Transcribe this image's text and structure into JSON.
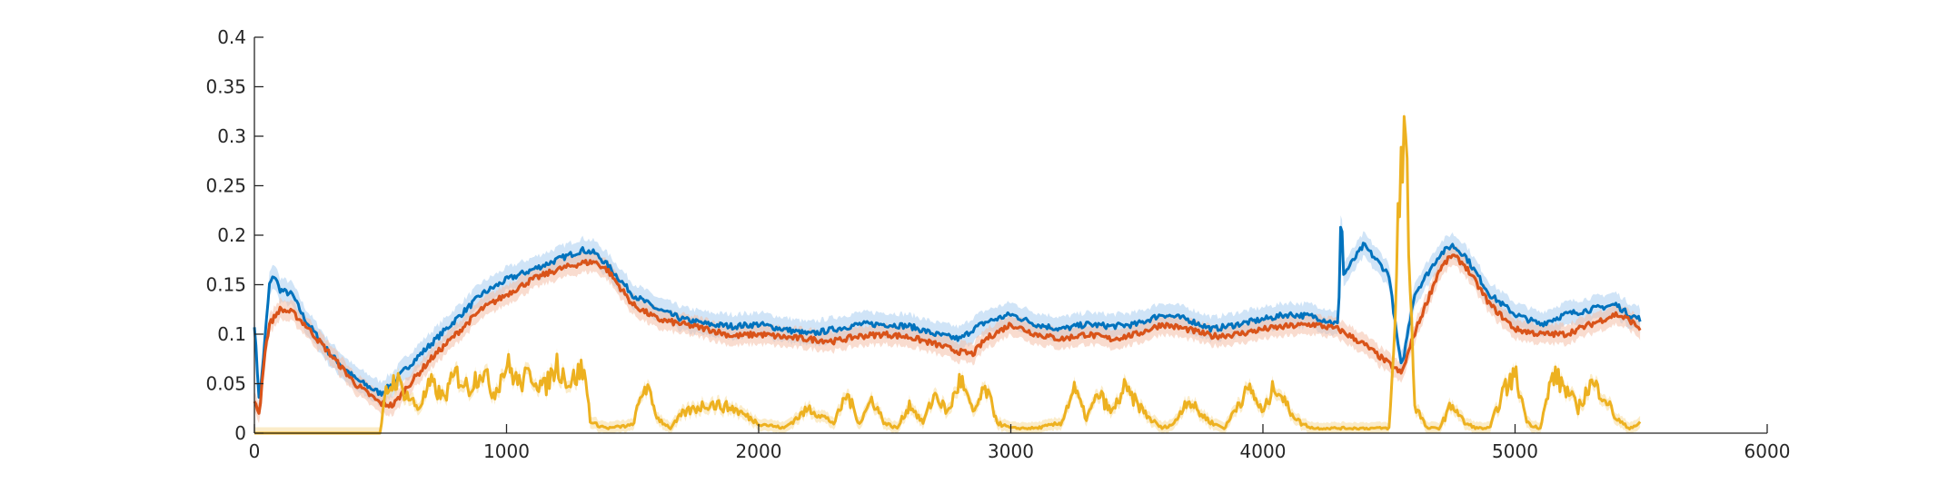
{
  "chart_data": {
    "type": "line",
    "title": "",
    "xlabel": "",
    "ylabel": "",
    "xlim": [
      0,
      6000
    ],
    "ylim": [
      0,
      0.4
    ],
    "xticks": [
      0,
      1000,
      2000,
      3000,
      4000,
      5000,
      6000
    ],
    "xtick_labels": [
      "0",
      "1000",
      "2000",
      "3000",
      "4000",
      "5000",
      "6000"
    ],
    "yticks": [
      0,
      0.05,
      0.1,
      0.15,
      0.2,
      0.25,
      0.3,
      0.35,
      0.4
    ],
    "ytick_labels": [
      "0",
      "0.05",
      "0.1",
      "0.15",
      "0.2",
      "0.25",
      "0.3",
      "0.35",
      "0.4"
    ],
    "grid": false,
    "legend": "none",
    "series": [
      {
        "color": "#0072BD",
        "band_color": "#a9cdf0",
        "x": [
          0,
          20,
          40,
          60,
          80,
          100,
          150,
          200,
          300,
          400,
          500,
          550,
          600,
          700,
          800,
          900,
          1000,
          1100,
          1200,
          1300,
          1350,
          1400,
          1500,
          1600,
          1700,
          1800,
          1900,
          2000,
          2100,
          2200,
          2300,
          2400,
          2500,
          2600,
          2700,
          2800,
          2850,
          2900,
          3000,
          3100,
          3200,
          3300,
          3400,
          3500,
          3600,
          3700,
          3800,
          3900,
          4000,
          4100,
          4200,
          4300,
          4310,
          4320,
          4400,
          4500,
          4530,
          4550,
          4600,
          4700,
          4750,
          4800,
          4900,
          5000,
          5100,
          5200,
          5300,
          5400,
          5450,
          5500
        ],
        "y": [
          0.11,
          0.03,
          0.09,
          0.15,
          0.16,
          0.145,
          0.14,
          0.115,
          0.08,
          0.055,
          0.04,
          0.05,
          0.065,
          0.09,
          0.115,
          0.14,
          0.155,
          0.165,
          0.175,
          0.185,
          0.182,
          0.17,
          0.14,
          0.125,
          0.115,
          0.11,
          0.108,
          0.11,
          0.105,
          0.1,
          0.105,
          0.11,
          0.11,
          0.108,
          0.1,
          0.095,
          0.105,
          0.112,
          0.12,
          0.11,
          0.105,
          0.11,
          0.108,
          0.11,
          0.12,
          0.115,
          0.105,
          0.11,
          0.115,
          0.12,
          0.118,
          0.11,
          0.235,
          0.16,
          0.19,
          0.16,
          0.1,
          0.065,
          0.14,
          0.18,
          0.19,
          0.18,
          0.14,
          0.12,
          0.11,
          0.12,
          0.125,
          0.13,
          0.12,
          0.115
        ],
        "band": 0.012
      },
      {
        "color": "#D95319",
        "band_color": "#f4c0a8",
        "x": [
          0,
          20,
          40,
          60,
          100,
          150,
          200,
          300,
          400,
          500,
          550,
          600,
          700,
          800,
          900,
          1000,
          1100,
          1200,
          1300,
          1350,
          1400,
          1500,
          1600,
          1700,
          1800,
          1900,
          2000,
          2100,
          2200,
          2300,
          2400,
          2500,
          2600,
          2700,
          2800,
          2850,
          2900,
          3000,
          3100,
          3200,
          3300,
          3400,
          3500,
          3600,
          3700,
          3800,
          3900,
          4000,
          4100,
          4200,
          4300,
          4400,
          4500,
          4550,
          4600,
          4700,
          4750,
          4800,
          4900,
          5000,
          5100,
          5200,
          5300,
          5400,
          5450,
          5500
        ],
        "y": [
          0.03,
          0.02,
          0.08,
          0.11,
          0.125,
          0.122,
          0.11,
          0.08,
          0.05,
          0.03,
          0.028,
          0.045,
          0.075,
          0.1,
          0.125,
          0.14,
          0.155,
          0.165,
          0.172,
          0.173,
          0.165,
          0.13,
          0.115,
          0.11,
          0.105,
          0.098,
          0.1,
          0.097,
          0.095,
          0.093,
          0.098,
          0.1,
          0.097,
          0.09,
          0.082,
          0.08,
          0.095,
          0.11,
          0.1,
          0.095,
          0.1,
          0.095,
          0.1,
          0.11,
          0.105,
          0.098,
          0.1,
          0.105,
          0.108,
          0.11,
          0.105,
          0.09,
          0.07,
          0.06,
          0.1,
          0.165,
          0.18,
          0.17,
          0.13,
          0.105,
          0.1,
          0.1,
          0.11,
          0.12,
          0.115,
          0.105
        ],
        "band": 0.01
      },
      {
        "color": "#EDB120",
        "band_color": "#f7dd9c",
        "x": [
          0,
          100,
          200,
          300,
          400,
          500,
          510,
          520,
          560,
          600,
          650,
          700,
          750,
          800,
          850,
          900,
          950,
          1000,
          1050,
          1100,
          1150,
          1200,
          1250,
          1300,
          1320,
          1330,
          1340,
          1400,
          1500,
          1550,
          1600,
          1650,
          1700,
          1800,
          1900,
          2000,
          2100,
          2200,
          2300,
          2350,
          2400,
          2450,
          2500,
          2550,
          2600,
          2650,
          2700,
          2750,
          2800,
          2850,
          2900,
          2950,
          3000,
          3100,
          3200,
          3250,
          3300,
          3350,
          3400,
          3450,
          3500,
          3550,
          3600,
          3650,
          3700,
          3750,
          3800,
          3850,
          3900,
          3950,
          4000,
          4050,
          4100,
          4150,
          4200,
          4300,
          4400,
          4450,
          4500,
          4520,
          4540,
          4560,
          4580,
          4600,
          4650,
          4700,
          4750,
          4800,
          4850,
          4900,
          4950,
          5000,
          5050,
          5100,
          5150,
          5200,
          5250,
          5300,
          5350,
          5400,
          5450,
          5500
        ],
        "y": [
          0,
          0,
          0,
          0,
          0,
          0,
          0.02,
          0.04,
          0.055,
          0.04,
          0.025,
          0.05,
          0.035,
          0.06,
          0.045,
          0.065,
          0.04,
          0.07,
          0.05,
          0.06,
          0.045,
          0.07,
          0.05,
          0.065,
          0.045,
          0.015,
          0.01,
          0.005,
          0.008,
          0.05,
          0.015,
          0.005,
          0.02,
          0.03,
          0.025,
          0.01,
          0.005,
          0.025,
          0.01,
          0.04,
          0.01,
          0.035,
          0.01,
          0.005,
          0.03,
          0.01,
          0.04,
          0.02,
          0.055,
          0.02,
          0.045,
          0.01,
          0.005,
          0.005,
          0.01,
          0.045,
          0.015,
          0.04,
          0.02,
          0.045,
          0.03,
          0.015,
          0.005,
          0.01,
          0.035,
          0.02,
          0.01,
          0.005,
          0.03,
          0.045,
          0.02,
          0.05,
          0.025,
          0.01,
          0.005,
          0.005,
          0.005,
          0.005,
          0.005,
          0.08,
          0.25,
          0.31,
          0.2,
          0.03,
          0.005,
          0.005,
          0.03,
          0.01,
          0.005,
          0.005,
          0.04,
          0.06,
          0.01,
          0.005,
          0.06,
          0.045,
          0.025,
          0.05,
          0.04,
          0.015,
          0.005,
          0.01
        ],
        "band": 0.006
      }
    ]
  }
}
